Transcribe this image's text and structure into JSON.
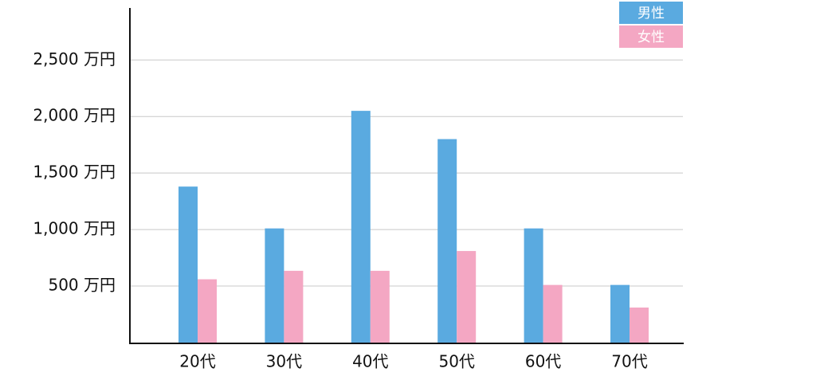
{
  "chart_data": {
    "type": "bar",
    "categories": [
      "20代",
      "30代",
      "40代",
      "50代",
      "60代",
      "70代"
    ],
    "series": [
      {
        "name": "男性",
        "color": "#5aaae0",
        "values": [
          1380,
          1010,
          2050,
          1800,
          1010,
          510
        ]
      },
      {
        "name": "女性",
        "color": "#f4a7c3",
        "values": [
          560,
          635,
          635,
          810,
          510,
          310
        ]
      }
    ],
    "ylim": [
      0,
      2960
    ],
    "yticks": [
      {
        "value": 500,
        "label": "500 万円"
      },
      {
        "value": 1000,
        "label": "1,000 万円"
      },
      {
        "value": 1500,
        "label": "1,500 万円"
      },
      {
        "value": 2000,
        "label": "2,000 万円"
      },
      {
        "value": 2500,
        "label": "2,500 万円"
      }
    ],
    "grid": true,
    "legend": "top-right"
  }
}
